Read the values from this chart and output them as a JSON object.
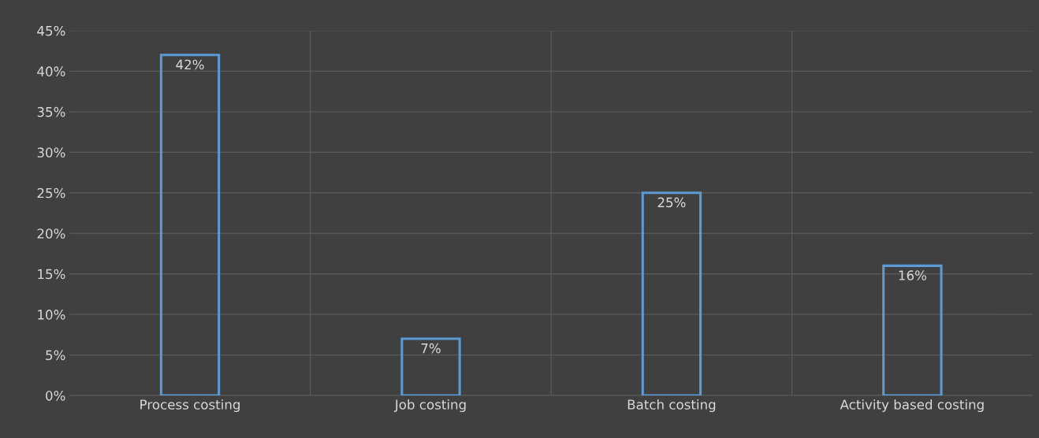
{
  "chart_data": {
    "type": "bar",
    "categories": [
      "Process costing",
      "Job costing",
      "Batch costing",
      "Activity based costing"
    ],
    "values": [
      42,
      7,
      25,
      16
    ],
    "value_labels": [
      "42%",
      "7%",
      "25%",
      "16%"
    ],
    "color": "#5b9bd5",
    "ylim": [
      0,
      45
    ],
    "yticks": [
      {
        "value": 0,
        "label": "0%"
      },
      {
        "value": 5,
        "label": "5%"
      },
      {
        "value": 10,
        "label": "10%"
      },
      {
        "value": 15,
        "label": "15%"
      },
      {
        "value": 20,
        "label": "20%"
      },
      {
        "value": 25,
        "label": "25%"
      },
      {
        "value": 30,
        "label": "30%"
      },
      {
        "value": 35,
        "label": "35%"
      },
      {
        "value": 40,
        "label": "40%"
      },
      {
        "value": 45,
        "label": "45%"
      }
    ],
    "grid": true
  }
}
